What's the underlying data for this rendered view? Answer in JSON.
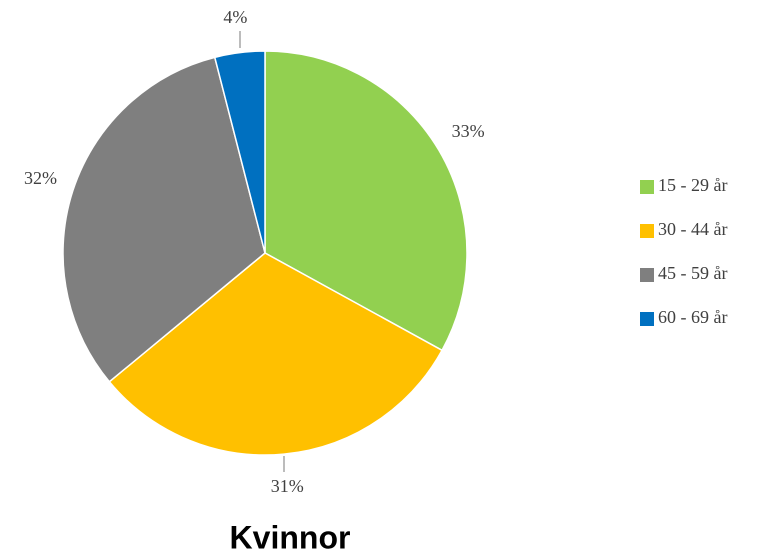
{
  "chart_data": {
    "type": "pie",
    "title": "Kvinnor",
    "categories": [
      "15 - 29 år",
      "30 - 44 år",
      "45 - 59 år",
      "60 - 69 år"
    ],
    "values": [
      33,
      31,
      32,
      4
    ],
    "value_labels": [
      "33%",
      "31%",
      "32%",
      "4%"
    ],
    "colors": [
      "#92d050",
      "#ffc000",
      "#7f7f7f",
      "#0070c0"
    ],
    "legend": "right"
  }
}
